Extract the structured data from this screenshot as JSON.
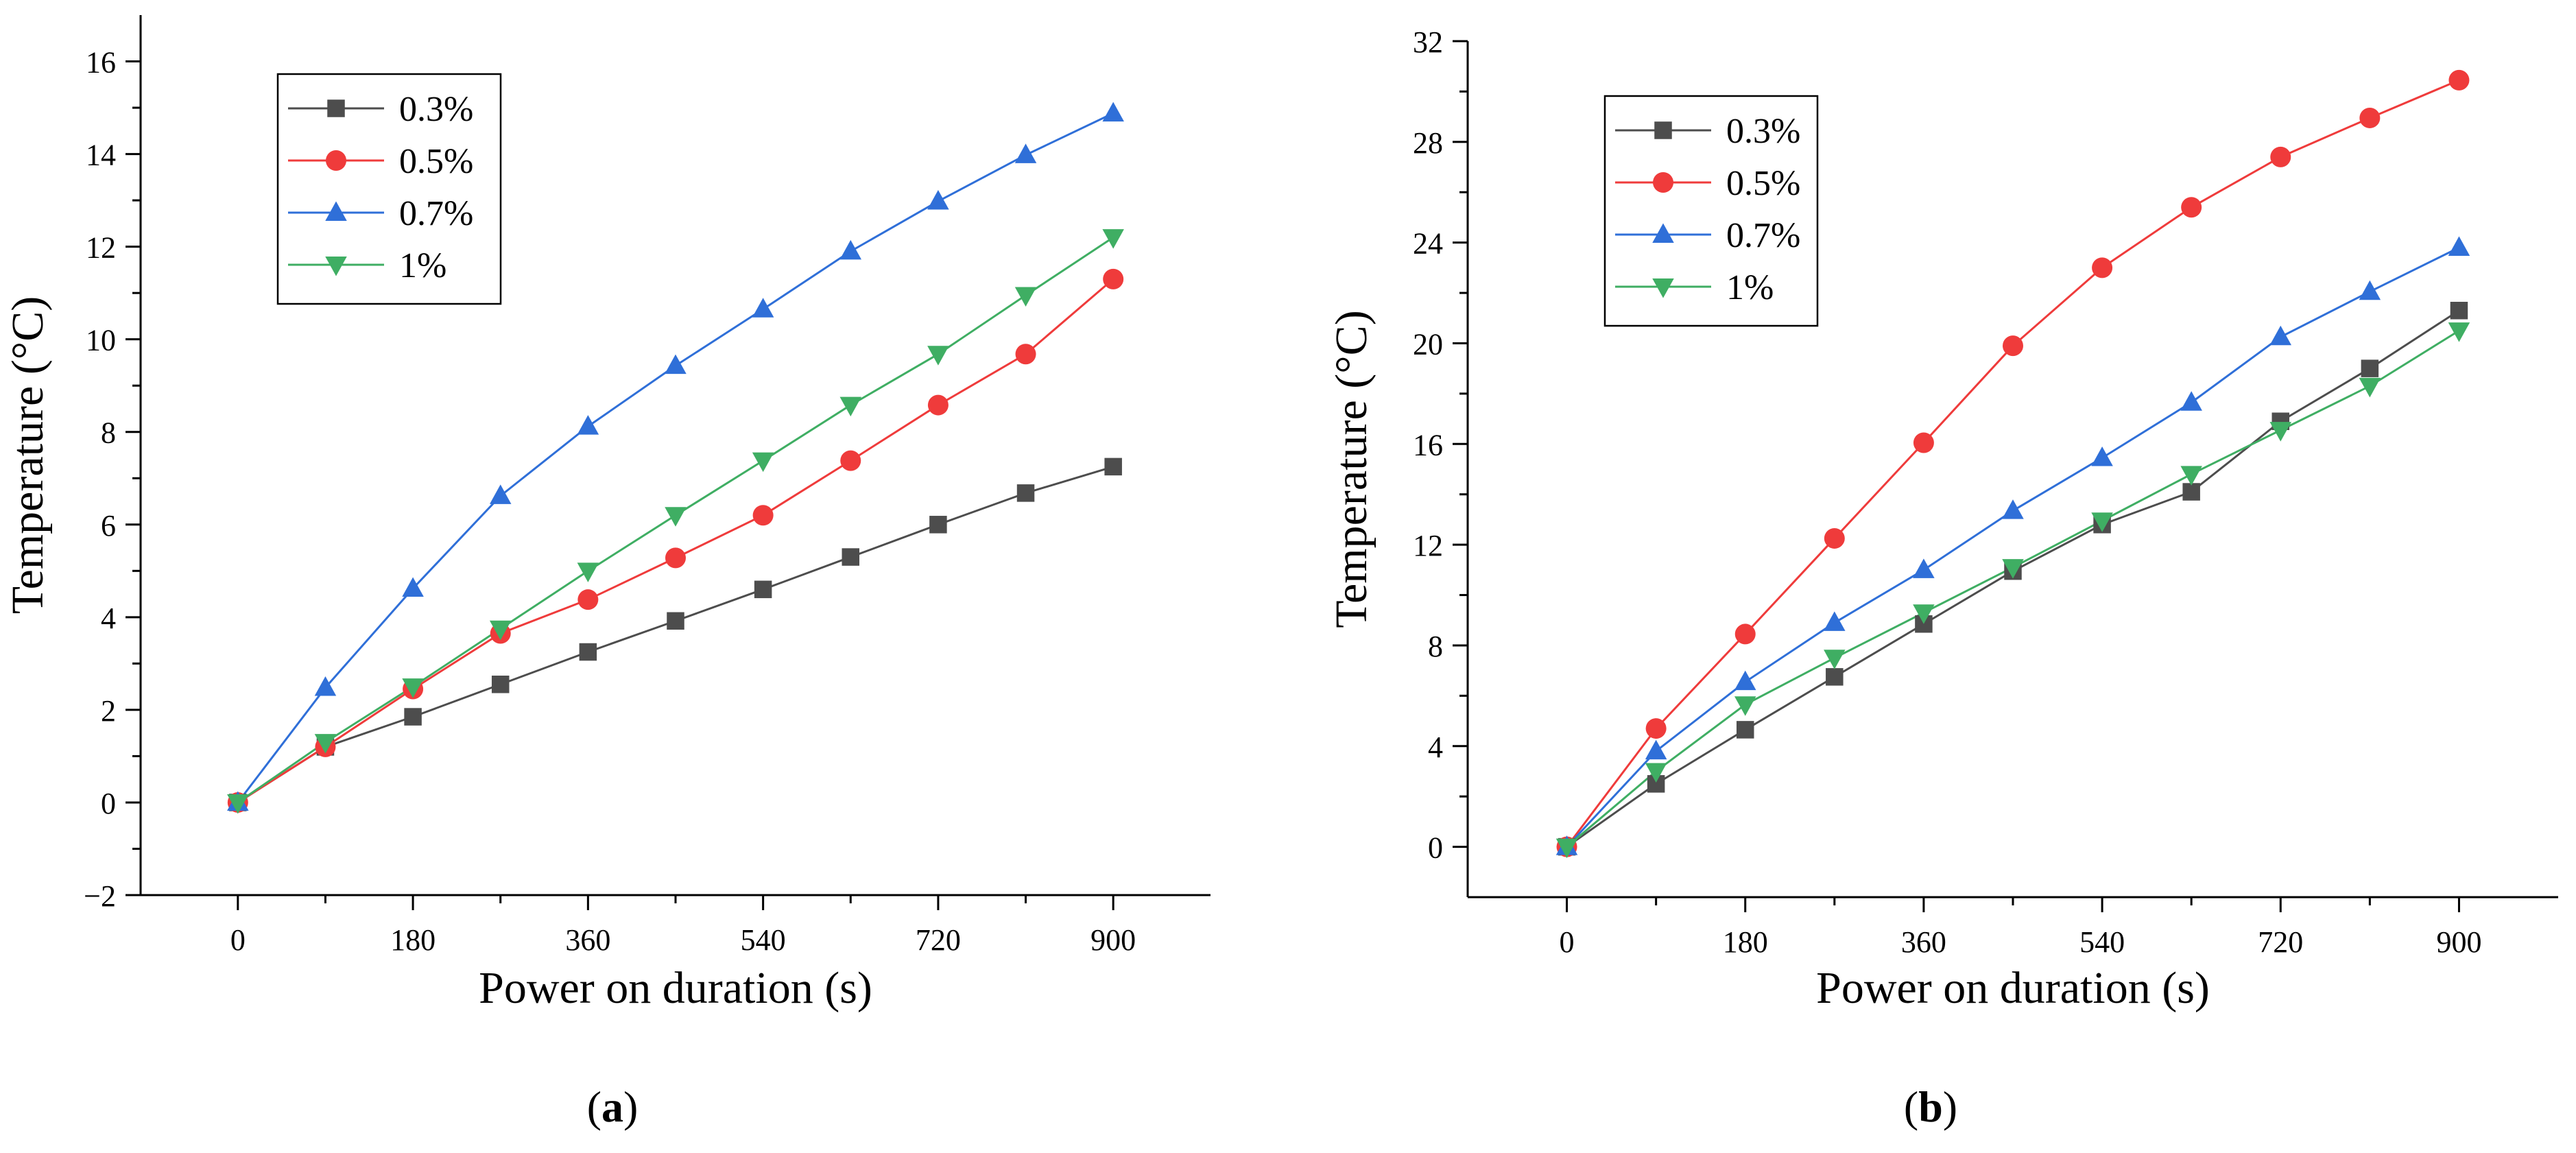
{
  "charts": [
    {
      "caption": "(a)",
      "caption_letter": "a",
      "chart_data": {
        "type": "line",
        "xlabel": "Power on duration (s)",
        "ylabel": "Temperature (°C)",
        "xlim": [
          -100,
          1000
        ],
        "ylim": [
          -2,
          17
        ],
        "xticks": [
          0,
          180,
          360,
          540,
          720,
          900
        ],
        "xtick_labels": [
          "0",
          "180",
          "360",
          "540",
          "720",
          "900"
        ],
        "yticks": [
          -2,
          0,
          2,
          4,
          6,
          8,
          10,
          12,
          14,
          16
        ],
        "ytick_labels": [
          "−2",
          "0",
          "2",
          "4",
          "6",
          "8",
          "10",
          "12",
          "14",
          "16"
        ],
        "legend_position": "top-left",
        "grid": false,
        "x": [
          0,
          90,
          180,
          270,
          360,
          450,
          540,
          630,
          720,
          810,
          900
        ],
        "series": [
          {
            "name": "0.3%",
            "color": "#4d4d4d",
            "marker": "square",
            "values": [
              0,
              1.2,
              1.85,
              2.55,
              3.25,
              3.92,
              4.6,
              5.3,
              6.0,
              6.68,
              7.25
            ]
          },
          {
            "name": "0.5%",
            "color": "#ef3b3b",
            "marker": "circle",
            "values": [
              0,
              1.2,
              2.45,
              3.65,
              4.38,
              5.28,
              6.2,
              7.38,
              8.58,
              9.68,
              11.3
            ]
          },
          {
            "name": "0.7%",
            "color": "#2f6fd8",
            "marker": "triangle-up",
            "values": [
              0,
              2.48,
              4.62,
              6.62,
              8.12,
              9.43,
              10.65,
              11.9,
              12.98,
              13.98,
              14.88
            ]
          },
          {
            "name": "1%",
            "color": "#3fae63",
            "marker": "triangle-down",
            "values": [
              0,
              1.3,
              2.5,
              3.75,
              5.0,
              6.2,
              7.38,
              8.58,
              9.68,
              10.95,
              12.2
            ]
          }
        ]
      }
    },
    {
      "caption": "(b)",
      "caption_letter": "b",
      "chart_data": {
        "type": "line",
        "xlabel": "Power on duration (s)",
        "ylabel": "Temperature (°C)",
        "xlim": [
          -100,
          1000
        ],
        "ylim": [
          -2,
          32
        ],
        "xticks": [
          0,
          180,
          360,
          540,
          720,
          900
        ],
        "xtick_labels": [
          "0",
          "180",
          "360",
          "540",
          "720",
          "900"
        ],
        "yticks": [
          0,
          4,
          8,
          12,
          16,
          20,
          24,
          28,
          32
        ],
        "ytick_labels": [
          "0",
          "4",
          "8",
          "12",
          "16",
          "20",
          "24",
          "28",
          "32"
        ],
        "legend_position": "top-left",
        "grid": false,
        "x": [
          0,
          90,
          180,
          270,
          360,
          450,
          540,
          630,
          720,
          810,
          900
        ],
        "series": [
          {
            "name": "0.3%",
            "color": "#4d4d4d",
            "marker": "square",
            "values": [
              0,
              2.5,
              4.65,
              6.75,
              8.85,
              10.95,
              12.8,
              14.1,
              16.9,
              19.0,
              21.3
            ]
          },
          {
            "name": "0.5%",
            "color": "#ef3b3b",
            "marker": "circle",
            "values": [
              0,
              4.7,
              8.45,
              12.25,
              16.05,
              19.9,
              23.0,
              25.4,
              27.4,
              28.95,
              30.45
            ]
          },
          {
            "name": "0.7%",
            "color": "#2f6fd8",
            "marker": "triangle-up",
            "values": [
              0,
              3.8,
              6.55,
              8.9,
              11.0,
              13.35,
              15.45,
              17.65,
              20.25,
              22.05,
              23.8
            ]
          },
          {
            "name": "1%",
            "color": "#3fae63",
            "marker": "triangle-down",
            "values": [
              0,
              3.0,
              5.65,
              7.5,
              9.3,
              11.1,
              12.95,
              14.8,
              16.55,
              18.3,
              20.5
            ]
          }
        ]
      }
    }
  ]
}
